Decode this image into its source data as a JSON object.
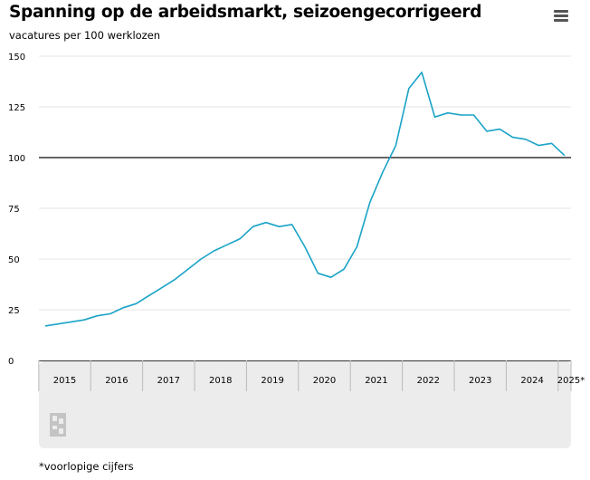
{
  "header": {
    "title": "Spanning op de arbeidsmarkt, seizoengecorrigeerd",
    "subtitle": "vacatures per 100 werklozen"
  },
  "menu_icon": "hamburger-menu-icon",
  "logo_icon": "cbs-logo-icon",
  "footnote": "*voorlopige cijfers",
  "colors": {
    "line": "#1aa3c7",
    "reference_line": "#333333",
    "grid": "#e6e6e6",
    "navigator_bg": "#ececec"
  },
  "chart_data": {
    "type": "line",
    "title": "Spanning op de arbeidsmarkt, seizoengecorrigeerd",
    "ylabel": "vacatures per 100 werklozen",
    "xlabel": "",
    "ylim": [
      0,
      150
    ],
    "yticks": [
      0,
      25,
      50,
      75,
      100,
      125,
      150
    ],
    "year_labels": [
      "2015",
      "2016",
      "2017",
      "2018",
      "2019",
      "2020",
      "2021",
      "2022",
      "2023",
      "2024",
      "2025*"
    ],
    "x_quarters": [
      "2015 Q1",
      "2015 Q2",
      "2015 Q3",
      "2015 Q4",
      "2016 Q1",
      "2016 Q2",
      "2016 Q3",
      "2016 Q4",
      "2017 Q1",
      "2017 Q2",
      "2017 Q3",
      "2017 Q4",
      "2018 Q1",
      "2018 Q2",
      "2018 Q3",
      "2018 Q4",
      "2019 Q1",
      "2019 Q2",
      "2019 Q3",
      "2019 Q4",
      "2020 Q1",
      "2020 Q2",
      "2020 Q3",
      "2020 Q4",
      "2021 Q1",
      "2021 Q2",
      "2021 Q3",
      "2021 Q4",
      "2022 Q1",
      "2022 Q2",
      "2022 Q3",
      "2022 Q4",
      "2023 Q1",
      "2023 Q2",
      "2023 Q3",
      "2023 Q4",
      "2024 Q1",
      "2024 Q2",
      "2024 Q3",
      "2024 Q4",
      "2025 Q1"
    ],
    "values": [
      17,
      18,
      19,
      20,
      22,
      23,
      26,
      28,
      32,
      36,
      40,
      45,
      50,
      54,
      57,
      60,
      66,
      68,
      66,
      67,
      56,
      43,
      41,
      45,
      56,
      78,
      93,
      106,
      134,
      142,
      120,
      122,
      121,
      121,
      113,
      114,
      110,
      109,
      106,
      107,
      101
    ],
    "reference_line": 100,
    "grid": true,
    "legend": "none"
  }
}
